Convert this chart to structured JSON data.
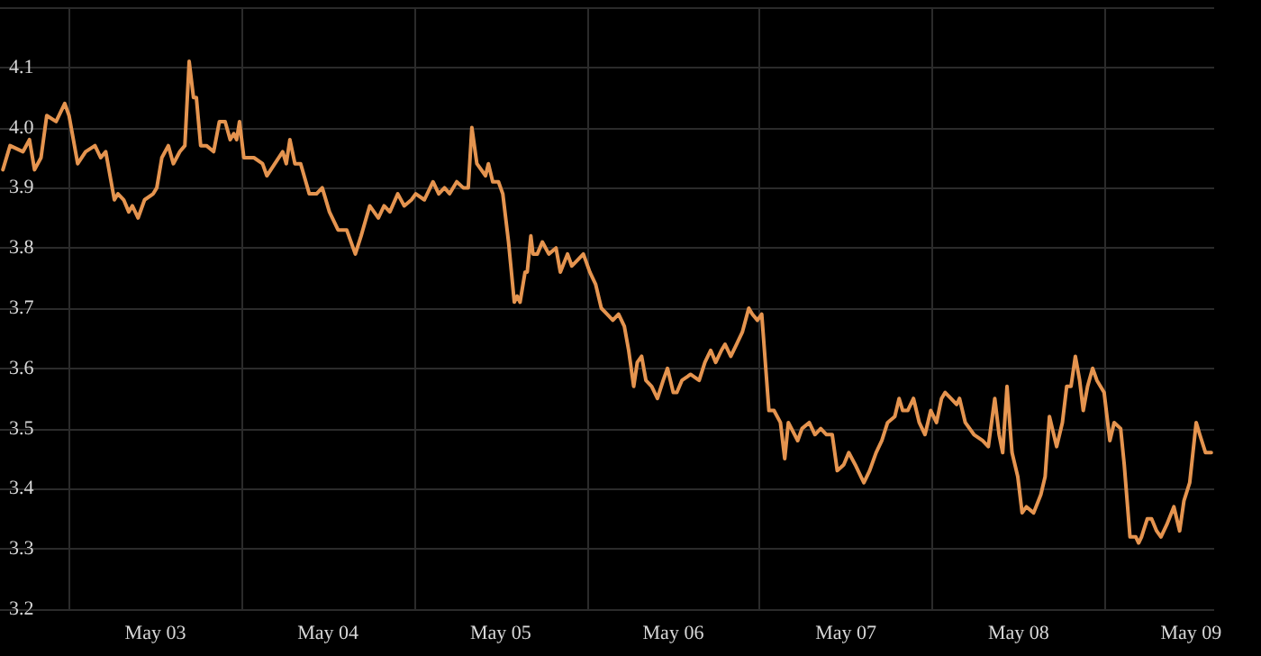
{
  "chart_data": {
    "type": "line",
    "x": [
      "--05-02T14:48",
      "--05-02T15:48",
      "--05-02T17:36",
      "--05-02T18:30",
      "--05-02T19:12",
      "--05-02T20:06",
      "--05-02T20:54",
      "--05-02T22:12",
      "--05-02T23:24",
      "--05-03T00:00",
      "--05-03T00:36",
      "--05-03T01:12",
      "--05-03T02:18",
      "--05-03T03:36",
      "--05-03T04:24",
      "--05-03T05:06",
      "--05-03T06:18",
      "--05-03T06:48",
      "--05-03T07:36",
      "--05-03T08:18",
      "--05-03T08:48",
      "--05-03T09:36",
      "--05-03T10:30",
      "--05-03T11:42",
      "--05-03T12:12",
      "--05-03T12:54",
      "--05-03T13:48",
      "--05-03T14:30",
      "--05-03T15:24",
      "--05-03T16:06",
      "--05-03T16:42",
      "--05-03T17:18",
      "--05-03T17:42",
      "--05-03T18:18",
      "--05-03T19:06",
      "--05-03T20:06",
      "--05-03T20:54",
      "--05-03T21:42",
      "--05-03T22:24",
      "--05-03T22:54",
      "--05-03T23:18",
      "--05-03T23:42",
      "--05-04T00:18",
      "--05-04T01:42",
      "--05-04T02:54",
      "--05-04T03:30",
      "--05-04T05:42",
      "--05-04T06:12",
      "--05-04T06:42",
      "--05-04T07:24",
      "--05-04T08:12",
      "--05-04T09:24",
      "--05-04T10:24",
      "--05-04T11:12",
      "--05-04T12:12",
      "--05-04T13:24",
      "--05-04T14:36",
      "--05-04T15:48",
      "--05-04T16:36",
      "--05-04T17:48",
      "--05-04T19:00",
      "--05-04T19:48",
      "--05-04T20:36",
      "--05-04T21:42",
      "--05-04T22:36",
      "--05-04T23:36",
      "--05-05T00:12",
      "--05-05T01:24",
      "--05-05T02:36",
      "--05-05T03:24",
      "--05-05T04:12",
      "--05-05T04:54",
      "--05-05T05:54",
      "--05-05T06:48",
      "--05-05T07:30",
      "--05-05T08:00",
      "--05-05T08:42",
      "--05-05T09:54",
      "--05-05T10:18",
      "--05-05T10:54",
      "--05-05T11:42",
      "--05-05T12:18",
      "--05-05T13:06",
      "--05-05T13:54",
      "--05-05T14:18",
      "--05-05T14:42",
      "--05-05T15:24",
      "--05-05T15:42",
      "--05-05T16:12",
      "--05-05T16:30",
      "--05-05T17:06",
      "--05-05T17:48",
      "--05-05T18:42",
      "--05-05T19:42",
      "--05-05T20:18",
      "--05-05T21:18",
      "--05-05T21:54",
      "--05-05T22:42",
      "--05-05T23:30",
      "--05-06T00:24",
      "--05-06T01:12",
      "--05-06T02:00",
      "--05-06T02:48",
      "--05-06T03:36",
      "--05-06T04:24",
      "--05-06T05:12",
      "--05-06T05:48",
      "--05-06T06:30",
      "--05-06T07:00",
      "--05-06T07:36",
      "--05-06T08:12",
      "--05-06T09:00",
      "--05-06T09:48",
      "--05-06T10:36",
      "--05-06T11:12",
      "--05-06T12:00",
      "--05-06T12:30",
      "--05-06T13:12",
      "--05-06T14:24",
      "--05-06T15:36",
      "--05-06T16:24",
      "--05-06T17:12",
      "--05-06T17:54",
      "--05-06T18:42",
      "--05-06T19:12",
      "--05-06T20:00",
      "--05-06T20:48",
      "--05-06T21:36",
      "--05-06T22:30",
      "--05-06T23:00",
      "--05-06T23:42",
      "--05-07T00:18",
      "--05-07T01:18",
      "--05-07T02:00",
      "--05-07T02:54",
      "--05-07T03:30",
      "--05-07T04:00",
      "--05-07T05:18",
      "--05-07T05:54",
      "--05-07T06:54",
      "--05-07T07:42",
      "--05-07T08:30",
      "--05-07T09:18",
      "--05-07T10:06",
      "--05-07T10:48",
      "--05-07T11:42",
      "--05-07T12:24",
      "--05-07T13:18",
      "--05-07T14:06",
      "--05-07T14:30",
      "--05-07T15:18",
      "--05-07T16:12",
      "--05-07T17:00",
      "--05-07T17:48",
      "--05-07T18:48",
      "--05-07T19:24",
      "--05-07T19:54",
      "--05-07T20:36",
      "--05-07T21:24",
      "--05-07T22:12",
      "--05-07T23:00",
      "--05-07T23:48",
      "--05-08T00:36",
      "--05-08T01:18",
      "--05-08T01:48",
      "--05-08T02:36",
      "--05-08T03:24",
      "--05-08T03:48",
      "--05-08T04:36",
      "--05-08T05:48",
      "--05-08T07:00",
      "--05-08T07:48",
      "--05-08T08:42",
      "--05-08T09:18",
      "--05-08T09:48",
      "--05-08T10:24",
      "--05-08T11:06",
      "--05-08T11:54",
      "--05-08T12:30",
      "--05-08T13:06",
      "--05-08T14:06",
      "--05-08T15:06",
      "--05-08T15:42",
      "--05-08T16:18",
      "--05-08T17:18",
      "--05-08T18:06",
      "--05-08T18:42",
      "--05-08T19:18",
      "--05-08T19:54",
      "--05-08T20:30",
      "--05-08T21:00",
      "--05-08T21:36",
      "--05-08T22:18",
      "--05-08T22:54",
      "--05-08T23:54",
      "--05-09T00:42",
      "--05-09T01:18",
      "--05-09T02:12",
      "--05-09T02:42",
      "--05-09T03:30",
      "--05-09T04:18",
      "--05-09T04:42",
      "--05-09T05:06",
      "--05-09T05:54",
      "--05-09T06:30",
      "--05-09T07:12",
      "--05-09T07:48",
      "--05-09T08:36",
      "--05-09T09:36",
      "--05-09T10:24",
      "--05-09T11:00",
      "--05-09T11:48",
      "--05-09T12:42",
      "--05-09T13:12",
      "--05-09T14:00",
      "--05-09T14:48"
    ],
    "series": [
      {
        "color": "#e5944f",
        "values": [
          3.93,
          3.97,
          3.96,
          3.98,
          3.93,
          3.95,
          4.02,
          4.01,
          4.04,
          4.02,
          3.98,
          3.94,
          3.96,
          3.97,
          3.95,
          3.96,
          3.88,
          3.89,
          3.88,
          3.86,
          3.87,
          3.85,
          3.88,
          3.89,
          3.9,
          3.95,
          3.97,
          3.94,
          3.96,
          3.97,
          4.11,
          4.05,
          4.05,
          3.97,
          3.97,
          3.96,
          4.01,
          4.01,
          3.98,
          3.99,
          3.98,
          4.01,
          3.95,
          3.95,
          3.94,
          3.92,
          3.96,
          3.94,
          3.98,
          3.94,
          3.94,
          3.89,
          3.89,
          3.9,
          3.86,
          3.83,
          3.83,
          3.79,
          3.82,
          3.87,
          3.85,
          3.87,
          3.86,
          3.89,
          3.87,
          3.88,
          3.89,
          3.88,
          3.91,
          3.89,
          3.9,
          3.89,
          3.91,
          3.9,
          3.9,
          4.0,
          3.94,
          3.92,
          3.94,
          3.91,
          3.91,
          3.89,
          3.81,
          3.71,
          3.72,
          3.71,
          3.76,
          3.76,
          3.82,
          3.79,
          3.79,
          3.81,
          3.79,
          3.8,
          3.76,
          3.79,
          3.77,
          3.78,
          3.79,
          3.76,
          3.74,
          3.7,
          3.69,
          3.68,
          3.69,
          3.67,
          3.63,
          3.57,
          3.61,
          3.62,
          3.58,
          3.57,
          3.55,
          3.58,
          3.6,
          3.56,
          3.56,
          3.58,
          3.59,
          3.58,
          3.61,
          3.63,
          3.61,
          3.63,
          3.64,
          3.62,
          3.64,
          3.66,
          3.7,
          3.69,
          3.68,
          3.69,
          3.53,
          3.53,
          3.51,
          3.45,
          3.51,
          3.48,
          3.5,
          3.51,
          3.49,
          3.5,
          3.49,
          3.49,
          3.43,
          3.44,
          3.46,
          3.44,
          3.42,
          3.41,
          3.43,
          3.46,
          3.48,
          3.51,
          3.52,
          3.55,
          3.53,
          3.53,
          3.55,
          3.51,
          3.49,
          3.53,
          3.51,
          3.55,
          3.56,
          3.55,
          3.54,
          3.55,
          3.51,
          3.49,
          3.48,
          3.47,
          3.55,
          3.49,
          3.46,
          3.57,
          3.46,
          3.42,
          3.36,
          3.37,
          3.36,
          3.39,
          3.42,
          3.52,
          3.47,
          3.51,
          3.57,
          3.57,
          3.62,
          3.58,
          3.53,
          3.57,
          3.6,
          3.58,
          3.56,
          3.48,
          3.51,
          3.5,
          3.44,
          3.32,
          3.32,
          3.31,
          3.32,
          3.35,
          3.35,
          3.33,
          3.32,
          3.34,
          3.37,
          3.33,
          3.38,
          3.41,
          3.51,
          3.49,
          3.46,
          3.46
        ]
      }
    ],
    "xlim": [
      "--05-02T14:24",
      "--05-09T15:12"
    ],
    "xticks": [
      {
        "value": "--05-03",
        "label": null
      },
      {
        "value": "--05-03T12:00",
        "label": "May 03"
      },
      {
        "value": "--05-04",
        "label": null
      },
      {
        "value": "--05-04T12:00",
        "label": "May 04"
      },
      {
        "value": "--05-05",
        "label": null
      },
      {
        "value": "--05-05T12:00",
        "label": "May 05"
      },
      {
        "value": "--05-06",
        "label": null
      },
      {
        "value": "--05-06T12:00",
        "label": "May 06"
      },
      {
        "value": "--05-07",
        "label": null
      },
      {
        "value": "--05-07T12:00",
        "label": "May 07"
      },
      {
        "value": "--05-08",
        "label": null
      },
      {
        "value": "--05-08T12:00",
        "label": "May 08"
      },
      {
        "value": "--05-09",
        "label": null
      },
      {
        "value": "--05-09T12:00",
        "label": "May 09"
      }
    ],
    "ylim": [
      3.2,
      4.2
    ],
    "yticks": [
      3.2,
      3.3,
      3.4,
      3.5,
      3.6,
      3.7,
      3.8,
      3.9,
      {
        "value": 4.0,
        "label": "4.0"
      },
      4.1,
      {
        "value": 4.2,
        "label": null
      }
    ],
    "grid": true
  }
}
